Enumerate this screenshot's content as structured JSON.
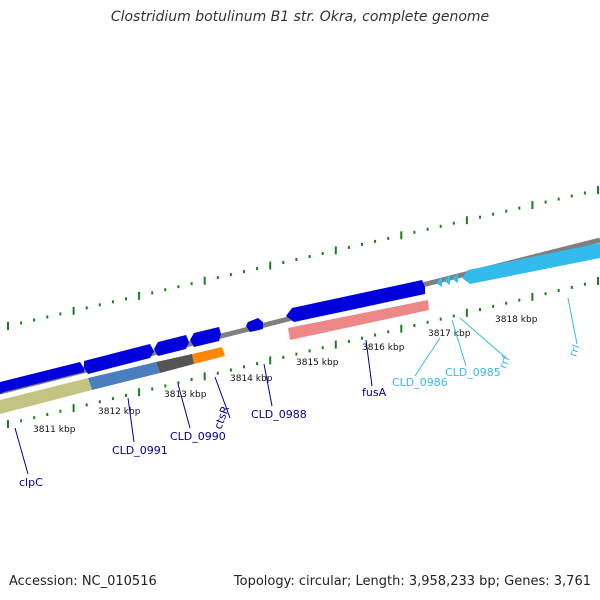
{
  "title": "Clostridium botulinum B1 str. Okra, complete genome",
  "footer": {
    "accession": "Accession: NC_010516",
    "summary": "Topology: circular; Length: 3,958,233 bp; Genes: 3,761"
  },
  "colors": {
    "backbone": "#7f7f7f",
    "tick": "#1a7f1a",
    "forward_gene": "#0000dd",
    "reverse_gene": "#0000dd",
    "rna_gene": "#33bbee",
    "rna_label": "#33bbee",
    "gene_label": "#000099",
    "cds_olive": "#c4c482",
    "cds_steel": "#4a7fbf",
    "cds_gray": "#555555",
    "cds_orange": "#ff8800",
    "cds_pink": "#ee8888"
  },
  "kbp_ticks": [
    {
      "label": "3811 kbp",
      "icon": "kbp-tick"
    },
    {
      "label": "3812 kbp",
      "icon": "kbp-tick"
    },
    {
      "label": "3813 kbp",
      "icon": "kbp-tick"
    },
    {
      "label": "3814 kbp",
      "icon": "kbp-tick"
    },
    {
      "label": "3815 kbp",
      "icon": "kbp-tick"
    },
    {
      "label": "3816 kbp",
      "icon": "kbp-tick"
    },
    {
      "label": "3817 kbp",
      "icon": "kbp-tick"
    },
    {
      "label": "3818 kbp",
      "icon": "kbp-tick"
    }
  ],
  "genes": [
    {
      "name": "clpC",
      "type": "protein"
    },
    {
      "name": "CLD_0991",
      "type": "protein"
    },
    {
      "name": "CLD_0990",
      "type": "protein"
    },
    {
      "name": "ctsR",
      "type": "protein"
    },
    {
      "name": "CLD_0988",
      "type": "protein"
    },
    {
      "name": "fusA",
      "type": "protein"
    },
    {
      "name": "CLD_0986",
      "type": "rna"
    },
    {
      "name": "CLD_0985",
      "type": "rna"
    },
    {
      "name": "rrf",
      "type": "rna"
    },
    {
      "name": "rrl",
      "type": "rna"
    }
  ]
}
